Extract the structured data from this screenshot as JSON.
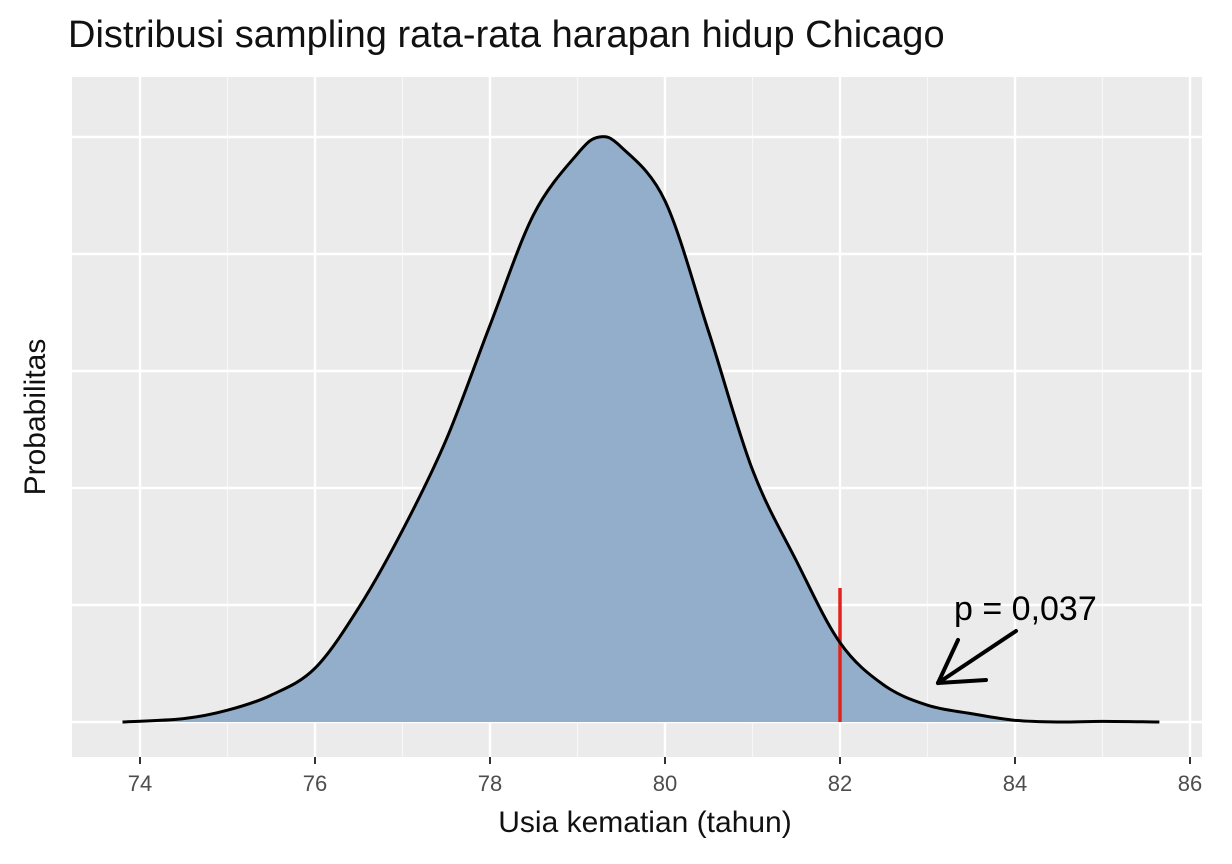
{
  "chart_data": {
    "type": "area",
    "title": "Distribusi sampling rata-rata harapan hidup Chicago",
    "xlabel": "Usia kematian (tahun)",
    "ylabel": "Probabilitas",
    "xlim": [
      73.8,
      86.4
    ],
    "x_ticks": [
      74,
      76,
      78,
      80,
      82,
      84,
      86
    ],
    "y_ticks_labels": [],
    "grid": true,
    "fill_color": "#8eabc9",
    "line_color": "#000000",
    "series": [
      {
        "name": "density",
        "x": [
          73.8,
          74.5,
          75.0,
          75.5,
          76.0,
          76.5,
          77.0,
          77.5,
          78.0,
          78.5,
          79.0,
          79.25,
          79.5,
          80.0,
          80.5,
          81.0,
          81.5,
          82.0,
          82.5,
          83.0,
          83.5,
          84.0,
          84.5,
          85.0,
          85.65
        ],
        "y": [
          0.0,
          0.01,
          0.035,
          0.08,
          0.16,
          0.34,
          0.57,
          0.84,
          1.18,
          1.51,
          1.69,
          1.74,
          1.71,
          1.55,
          1.16,
          0.75,
          0.48,
          0.236,
          0.11,
          0.05,
          0.025,
          0.005,
          0.0,
          0.002,
          0.0
        ]
      }
    ],
    "vline": {
      "x": 82,
      "color": "#e3231b"
    },
    "annotation": {
      "text": "p = 0,037",
      "arrow_to_x": 83.0,
      "arrow_to_y": 0.11
    }
  },
  "title": "Distribusi sampling rata-rata harapan hidup Chicago",
  "xlabel": "Usia kematian (tahun)",
  "ylabel": "Probabilitas",
  "annotation_text": "p = 0,037",
  "x_tick_labels": [
    "74",
    "76",
    "78",
    "80",
    "82",
    "84",
    "86"
  ]
}
